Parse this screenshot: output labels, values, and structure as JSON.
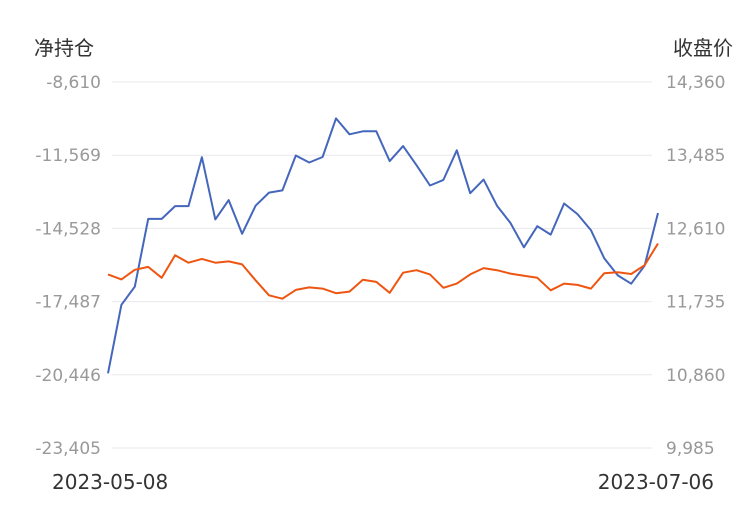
{
  "chart_data": {
    "type": "line",
    "left_axis_title": "净持仓",
    "right_axis_title": "收盘价",
    "left_ticks": [
      "-8,610",
      "-11,569",
      "-14,528",
      "-17,487",
      "-20,446",
      "-23,405"
    ],
    "right_ticks": [
      "14,360",
      "13,485",
      "12,610",
      "11,735",
      "10,860",
      "9,985"
    ],
    "left_ylim": [
      -23405,
      -8610
    ],
    "right_ylim": [
      9985,
      14360
    ],
    "x_start_label": "2023-05-08",
    "x_end_label": "2023-07-06",
    "grid": true,
    "series": [
      {
        "axis": "left",
        "color": "#4466bb",
        "values": [
          -20386,
          -17618,
          -16883,
          -14145,
          -14145,
          -13628,
          -13628,
          -11649,
          -14166,
          -13383,
          -14745,
          -13611,
          -13081,
          -12992,
          -11582,
          -11863,
          -11642,
          -10080,
          -10723,
          -10602,
          -10602,
          -11807,
          -11201,
          -11974,
          -12795,
          -12568,
          -11372,
          -13105,
          -12557,
          -13610,
          -14306,
          -15294,
          -14439,
          -14778,
          -13521,
          -13949,
          -14598,
          -15742,
          -16427,
          -16763,
          -16036,
          -13906
        ]
      },
      {
        "axis": "right",
        "color": "#ee5511",
        "values": [
          12060,
          12000,
          12115,
          12150,
          12020,
          12290,
          12200,
          12245,
          12200,
          12215,
          12180,
          11990,
          11810,
          11770,
          11875,
          11905,
          11890,
          11835,
          11855,
          11995,
          11970,
          11840,
          12080,
          12110,
          12060,
          11900,
          11950,
          12060,
          12135,
          12110,
          12070,
          12045,
          12020,
          11870,
          11950,
          11935,
          11890,
          12075,
          12085,
          12065,
          12170,
          12430
        ]
      }
    ]
  }
}
